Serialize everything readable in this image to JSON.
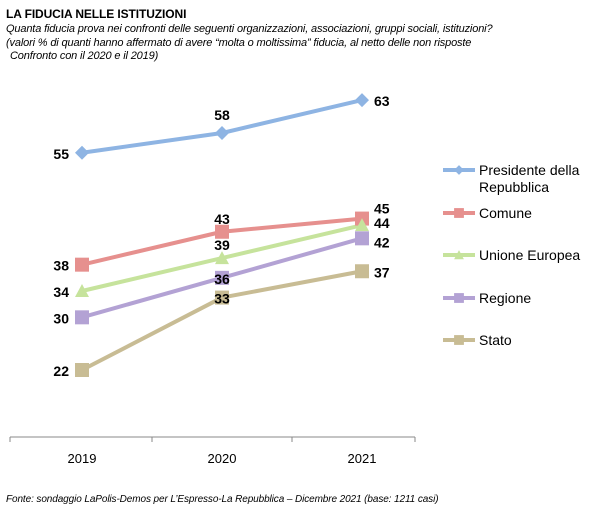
{
  "title": "LA FIDUCIA NELLE ISTITUZIONI",
  "subtitle_lines": [
    "Quanta fiducia prova nei confronti delle seguenti organizzazioni, associazioni, gruppi sociali, istituzioni?",
    "(valori % di quanti hanno affermato di avere “molta o moltissima” fiducia, al netto delle non risposte",
    "Confronto con il 2020 e il 2019)"
  ],
  "source": "Fonte: sondaggio LaPolis-Demos per L’Espresso-La Repubblica – Dicembre 2021 (base: 1211 casi)",
  "chart_data": {
    "type": "line",
    "categories": [
      "2019",
      "2020",
      "2021"
    ],
    "ylim": [
      10,
      70
    ],
    "grid": false,
    "legend_position": "right",
    "series": [
      {
        "name": "Presidente della Repubblica",
        "legend_lines": [
          "Presidente della",
          "Repubblica"
        ],
        "values": [
          55,
          58,
          63
        ],
        "color": "#8eb4e3",
        "marker": "diamond"
      },
      {
        "name": "Comune",
        "legend_lines": [
          "Comune"
        ],
        "values": [
          38,
          43,
          45
        ],
        "color": "#e6908e",
        "marker": "square"
      },
      {
        "name": "Unione Europea",
        "legend_lines": [
          "Unione Europea"
        ],
        "values": [
          34,
          39,
          44
        ],
        "color": "#c6e39c",
        "marker": "triangle"
      },
      {
        "name": "Regione",
        "legend_lines": [
          "Regione"
        ],
        "values": [
          30,
          36,
          42
        ],
        "color": "#b3a2d4",
        "marker": "square"
      },
      {
        "name": "Stato",
        "legend_lines": [
          "Stato"
        ],
        "values": [
          22,
          33,
          37
        ],
        "color": "#c8bc94",
        "marker": "square"
      }
    ]
  }
}
